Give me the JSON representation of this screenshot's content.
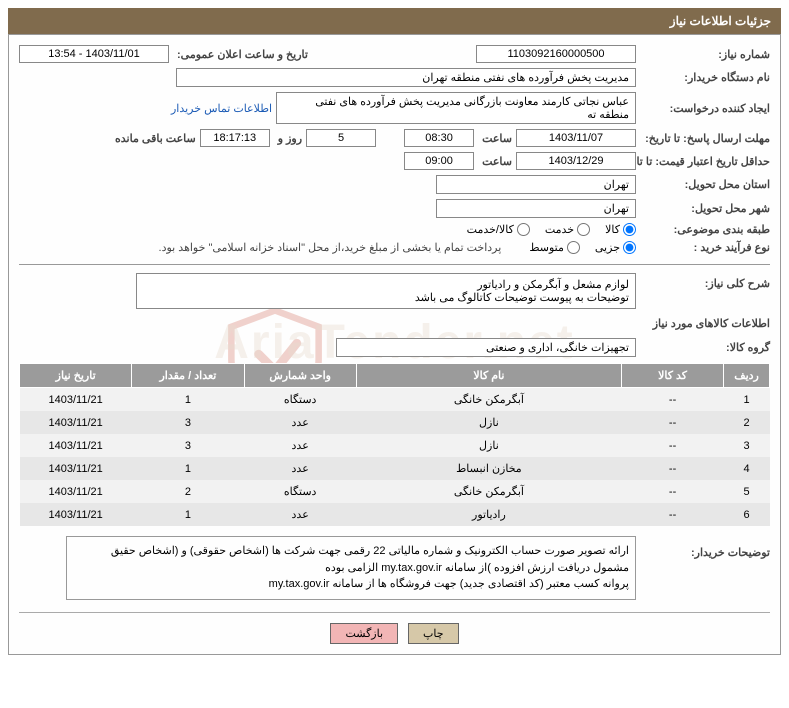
{
  "header": {
    "title": "جزئیات اطلاعات نیاز"
  },
  "fields": {
    "need_number": {
      "label": "شماره نیاز:",
      "value": "1103092160000500"
    },
    "announce": {
      "label": "تاریخ و ساعت اعلان عمومی:",
      "value": "1403/11/01 - 13:54"
    },
    "buyer_org": {
      "label": "نام دستگاه خریدار:",
      "value": "مدیریت پخش فرآورده های نفتی منطقه تهران"
    },
    "requester": {
      "label": "ایجاد کننده درخواست:",
      "value": "عباس نجاتی کارمند معاونت بازرگانی مدیریت پخش فرآورده های نفتی منطقه ته"
    },
    "contact_link": "اطلاعات تماس خریدار",
    "deadline": {
      "label": "مهلت ارسال پاسخ: تا تاریخ:",
      "date": "1403/11/07",
      "time_label": "ساعت",
      "time": "08:30",
      "remain_days": "5",
      "days_word": "روز و",
      "remain_time": "18:17:13",
      "remain_word": "ساعت باقی مانده"
    },
    "validity": {
      "label": "حداقل تاریخ اعتبار قیمت: تا تاریخ:",
      "date": "1403/12/29",
      "time_label": "ساعت",
      "time": "09:00"
    },
    "delivery_province": {
      "label": "استان محل تحویل:",
      "value": "تهران"
    },
    "delivery_city": {
      "label": "شهر محل تحویل:",
      "value": "تهران"
    },
    "subject_class": {
      "label": "طبقه بندی موضوعی:",
      "options": [
        "کالا",
        "خدمت",
        "کالا/خدمت"
      ],
      "selected": 0
    },
    "purchase_type": {
      "label": "نوع فرآیند خرید :",
      "options": [
        "جزیی",
        "متوسط"
      ],
      "selected": 0,
      "note": "پرداخت تمام یا بخشی از مبلغ خرید،از محل \"اسناد خزانه اسلامی\" خواهد بود."
    },
    "general_desc": {
      "label": "شرح کلی نیاز:",
      "line1": "لوازم مشعل و آبگرمکن و رادیاتور",
      "line2": "توضیحات به پیوست توضیحات کاتالوگ می باشد"
    },
    "goods_info_title": "اطلاعات کالاهای مورد نیاز",
    "goods_group": {
      "label": "گروه کالا:",
      "value": "تجهیزات خانگی، اداری و صنعتی"
    },
    "buyer_desc": {
      "label": "توضیحات خریدار:",
      "text": "ارائه  تصویر صورت حساب الکترونیک و شماره مالیاتی 22 رقمی  جهت شرکت ها (اشخاص حقوقی) و (اشخاص حقیق مشمول دریافت ارزش افزوده )از سامانه my.tax.gov.ir  الزامی بوده\nپروانه کسب معتبر (کد اقتصادی جدید) جهت فروشگاه ها از سامانه my.tax.gov.ir"
    }
  },
  "table": {
    "headers": [
      "ردیف",
      "کد کالا",
      "نام کالا",
      "واحد شمارش",
      "تعداد / مقدار",
      "تاریخ نیاز"
    ],
    "rows": [
      [
        "1",
        "--",
        "آبگرمکن خانگی",
        "دستگاه",
        "1",
        "1403/11/21"
      ],
      [
        "2",
        "--",
        "نازل",
        "عدد",
        "3",
        "1403/11/21"
      ],
      [
        "3",
        "--",
        "نازل",
        "عدد",
        "3",
        "1403/11/21"
      ],
      [
        "4",
        "--",
        "مخازن انبساط",
        "عدد",
        "1",
        "1403/11/21"
      ],
      [
        "5",
        "--",
        "آبگرمکن خانگی",
        "دستگاه",
        "2",
        "1403/11/21"
      ],
      [
        "6",
        "--",
        "رادیاتور",
        "عدد",
        "1",
        "1403/11/21"
      ]
    ]
  },
  "buttons": {
    "print": "چاپ",
    "back": "بازگشت"
  },
  "colors": {
    "header_bg": "#806b4d",
    "table_header_bg": "#9b9b9b",
    "link": "#1a5ab5",
    "btn_print": "#d6c8a8",
    "btn_back": "#f2b5b5"
  }
}
